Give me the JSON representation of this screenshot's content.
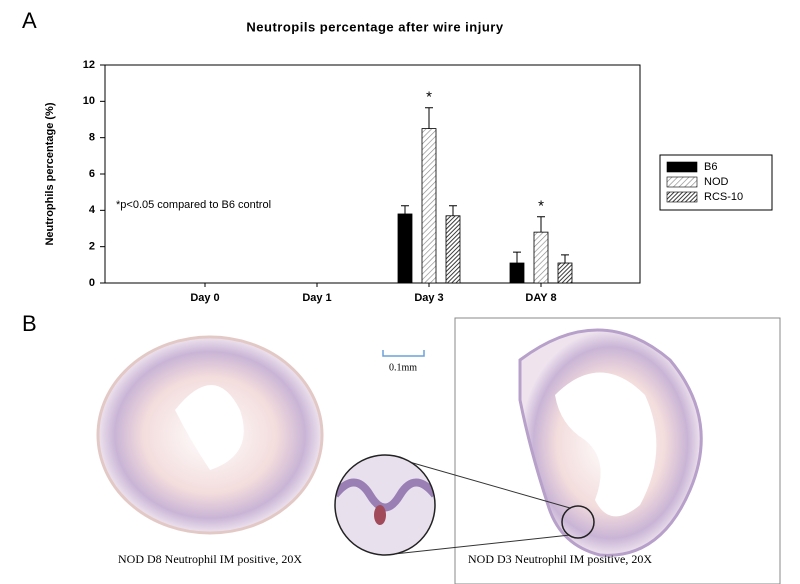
{
  "panel_labels": [
    "A",
    "B"
  ],
  "chart_data": {
    "type": "bar",
    "title": "Neutropils percentage after wire injury",
    "y_label": "Neutrophils percentage (%)",
    "annotation": "*p<0.05 compared to B6 control",
    "categories": [
      "Day 0",
      "Day 1",
      "Day 3",
      "DAY 8"
    ],
    "series": [
      {
        "name": "B6",
        "color": "#000000",
        "hatch": false,
        "values": [
          null,
          null,
          3.8,
          1.1
        ],
        "errors": [
          null,
          null,
          0.45,
          0.6
        ]
      },
      {
        "name": "NOD",
        "color": "#8a8a8a",
        "hatch": true,
        "values": [
          null,
          null,
          8.5,
          2.8
        ],
        "errors": [
          null,
          null,
          1.15,
          0.85
        ],
        "significance": [
          null,
          null,
          "*",
          "*"
        ]
      },
      {
        "name": "RCS-10",
        "color": "#3a3a3a",
        "hatch": true,
        "values": [
          null,
          null,
          3.7,
          1.1
        ],
        "errors": [
          null,
          null,
          0.55,
          0.45
        ]
      }
    ],
    "ylim": [
      0,
      12
    ],
    "yticks": [
      0,
      2,
      4,
      6,
      8,
      10,
      12
    ]
  },
  "images": {
    "scale_bar": "0.1mm",
    "captions": [
      "NOD D8 Neutrophil IM positive, 20X",
      "NOD D3 Neutrophil IM positive, 20X"
    ]
  }
}
